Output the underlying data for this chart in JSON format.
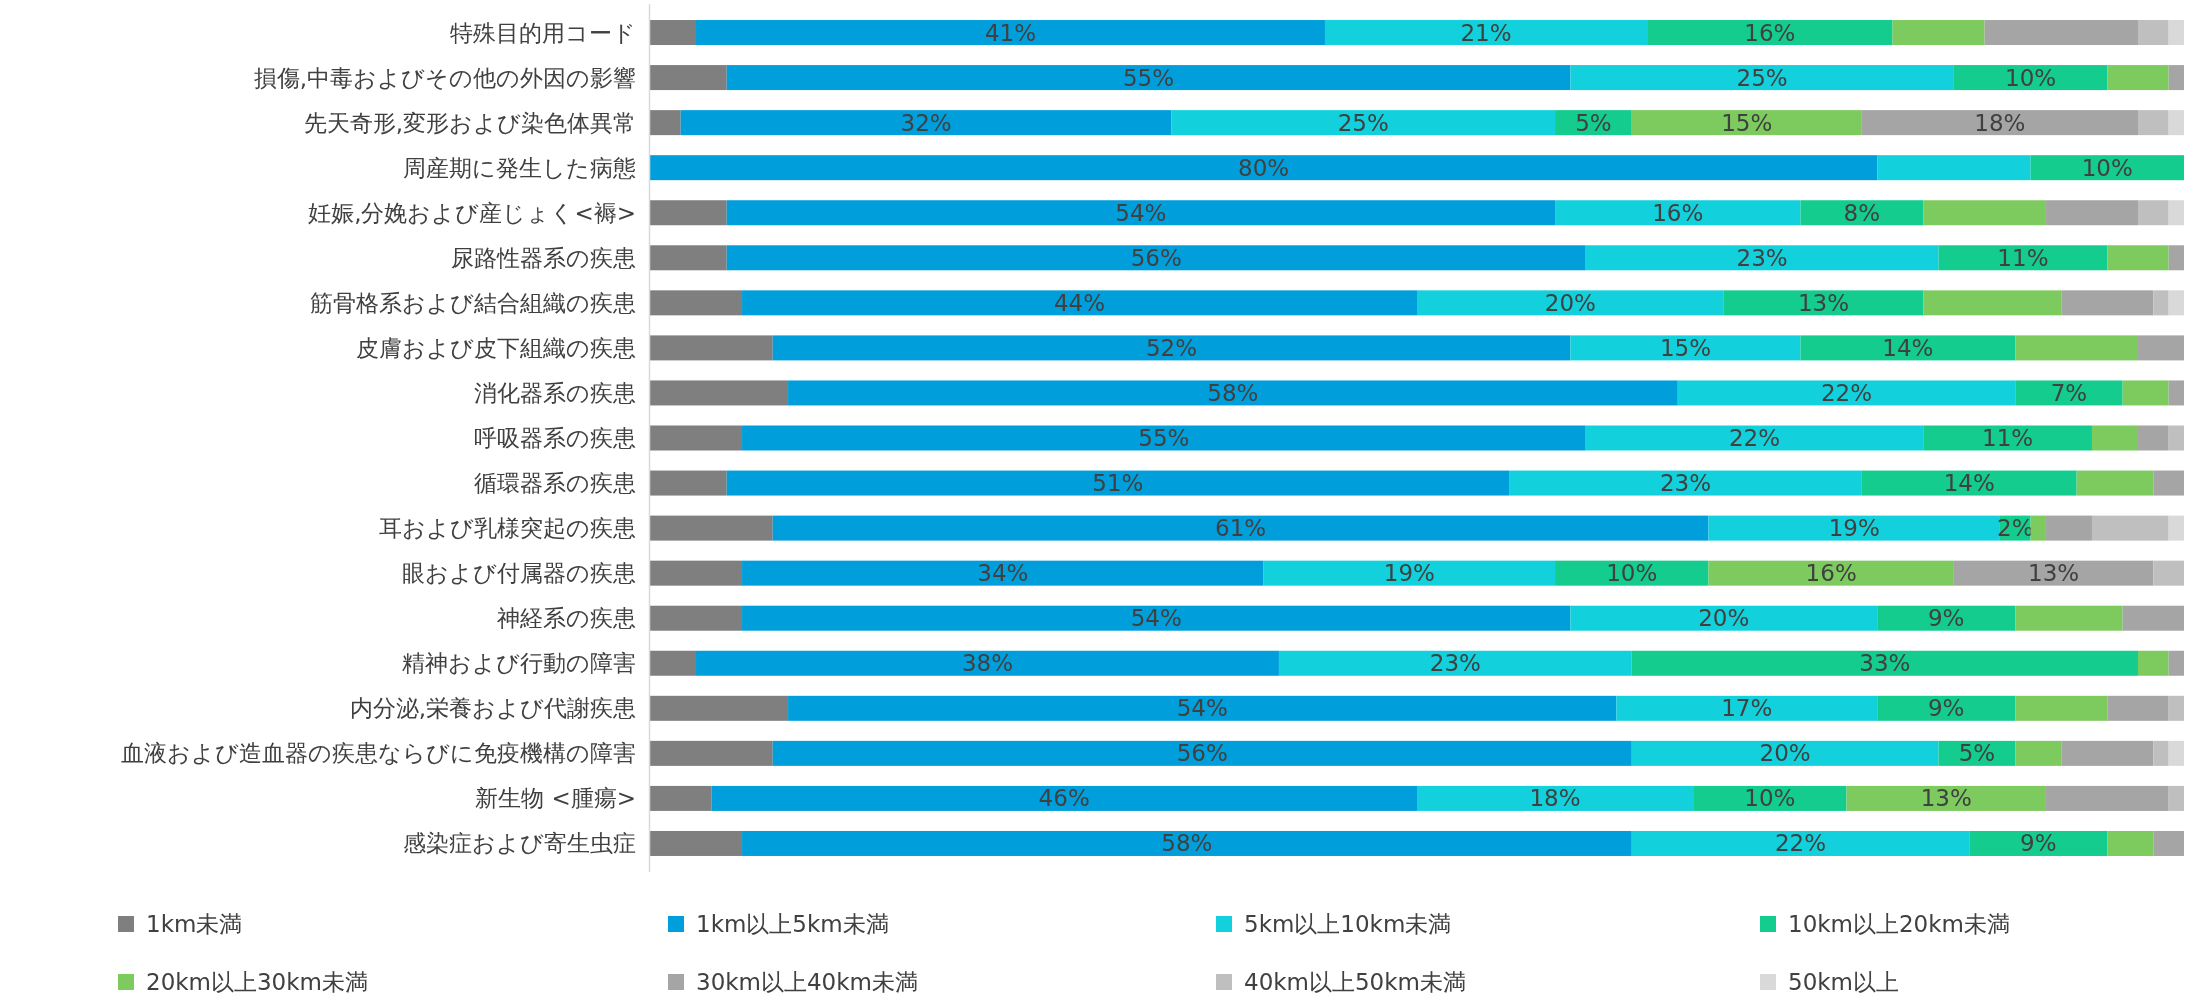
{
  "chart_data": {
    "type": "bar",
    "orientation": "horizontal",
    "stacked": true,
    "xlim": [
      0,
      100
    ],
    "legend": "bottom",
    "categories": [
      "特殊目的用コード",
      "損傷,中毒およびその他の外因の影響",
      "先天奇形,変形および染色体異常",
      "周産期に発生した病態",
      "妊娠,分娩および産じょく<褥>",
      "尿路性器系の疾患",
      "筋骨格系および結合組織の疾患",
      "皮膚および皮下組織の疾患",
      "消化器系の疾患",
      "呼吸器系の疾患",
      "循環器系の疾患",
      "耳および乳様突起の疾患",
      "眼および付属器の疾患",
      "神経系の疾患",
      "精神および行動の障害",
      "内分泌,栄養および代謝疾患",
      "血液および造血器の疾患ならびに免疫機構の障害",
      "新生物 <腫瘍>",
      "感染症および寄生虫症"
    ],
    "series": [
      {
        "name": "1km未満",
        "color": "#7f7f7f",
        "values": [
          3,
          5,
          2,
          0,
          5,
          5,
          6,
          8,
          9,
          6,
          5,
          8,
          6,
          6,
          3,
          9,
          8,
          4,
          6
        ],
        "value_labels": [
          null,
          null,
          null,
          null,
          null,
          null,
          null,
          null,
          null,
          null,
          null,
          null,
          null,
          null,
          null,
          null,
          null,
          null,
          null
        ]
      },
      {
        "name": "1km以上5km未満",
        "color": "#009fdc",
        "values": [
          41,
          55,
          32,
          80,
          54,
          56,
          44,
          52,
          58,
          55,
          51,
          61,
          34,
          54,
          38,
          54,
          56,
          46,
          58
        ],
        "value_labels": [
          "41%",
          "55%",
          "32%",
          "80%",
          "54%",
          "56%",
          "44%",
          "52%",
          "58%",
          "55%",
          "51%",
          "61%",
          "34%",
          "54%",
          "38%",
          "54%",
          "56%",
          "46%",
          "58%"
        ]
      },
      {
        "name": "5km以上10km未満",
        "color": "#12d1dc",
        "values": [
          21,
          25,
          25,
          10,
          16,
          23,
          20,
          15,
          22,
          22,
          23,
          19,
          19,
          20,
          23,
          17,
          20,
          18,
          22
        ],
        "value_labels": [
          "21%",
          "25%",
          "25%",
          null,
          "16%",
          "23%",
          "20%",
          "15%",
          "22%",
          "22%",
          "23%",
          "19%",
          "19%",
          "20%",
          "23%",
          "17%",
          "20%",
          "18%",
          "22%"
        ]
      },
      {
        "name": "10km以上20km未満",
        "color": "#13cc8e",
        "values": [
          16,
          10,
          5,
          10,
          8,
          11,
          13,
          14,
          7,
          11,
          14,
          2,
          10,
          9,
          33,
          9,
          5,
          10,
          9
        ],
        "value_labels": [
          "16%",
          "10%",
          "5%",
          "10%",
          "8%",
          "11%",
          "13%",
          "14%",
          "7%",
          "11%",
          "14%",
          "2%",
          "10%",
          "9%",
          "33%",
          "9%",
          "5%",
          "10%",
          "9%"
        ]
      },
      {
        "name": "20km以上30km未満",
        "color": "#7dcb5f",
        "values": [
          6,
          4,
          15,
          0,
          8,
          4,
          9,
          8,
          3,
          3,
          5,
          1,
          16,
          7,
          2,
          6,
          3,
          13,
          3
        ],
        "value_labels": [
          null,
          null,
          "15%",
          null,
          null,
          null,
          null,
          null,
          null,
          null,
          null,
          null,
          "16%",
          null,
          null,
          null,
          null,
          "13%",
          null
        ]
      },
      {
        "name": "30km以上40km未満",
        "color": "#a5a5a5",
        "values": [
          10,
          1,
          18,
          0,
          6,
          1,
          6,
          3,
          1,
          2,
          2,
          3,
          13,
          4,
          1,
          4,
          6,
          8,
          2
        ],
        "value_labels": [
          null,
          null,
          "18%",
          null,
          null,
          null,
          null,
          null,
          null,
          null,
          null,
          null,
          "13%",
          null,
          null,
          null,
          null,
          null,
          null
        ]
      },
      {
        "name": "40km以上50km未満",
        "color": "#bfbfbf",
        "values": [
          2,
          0,
          2,
          0,
          2,
          0,
          1,
          0,
          0,
          1,
          0,
          5,
          2,
          0,
          0,
          1,
          1,
          1,
          0
        ],
        "value_labels": [
          null,
          null,
          null,
          null,
          null,
          null,
          null,
          null,
          null,
          null,
          null,
          null,
          null,
          null,
          null,
          null,
          null,
          null,
          null
        ]
      },
      {
        "name": "50km以上",
        "color": "#d9d9d9",
        "values": [
          1,
          0,
          1,
          0,
          1,
          0,
          1,
          0,
          0,
          0,
          0,
          1,
          0,
          0,
          0,
          0,
          1,
          0,
          0
        ],
        "value_labels": [
          null,
          null,
          null,
          null,
          null,
          null,
          null,
          null,
          null,
          null,
          null,
          null,
          null,
          null,
          null,
          null,
          null,
          null,
          null
        ]
      }
    ]
  }
}
